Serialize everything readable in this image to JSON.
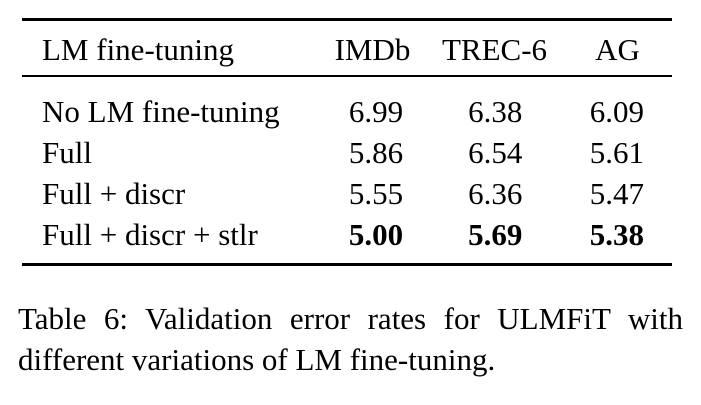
{
  "table": {
    "headers": [
      "LM fine-tuning",
      "IMDb",
      "TREC-6",
      "AG"
    ],
    "rows": [
      {
        "name": "No LM fine-tuning",
        "values": [
          "6.99",
          "6.38",
          "6.09"
        ],
        "bold": [
          false,
          false,
          false
        ]
      },
      {
        "name": "Full",
        "values": [
          "5.86",
          "6.54",
          "5.61"
        ],
        "bold": [
          false,
          false,
          false
        ]
      },
      {
        "name": "Full + discr",
        "values": [
          "5.55",
          "6.36",
          "5.47"
        ],
        "bold": [
          false,
          false,
          false
        ]
      },
      {
        "name": "Full + discr + stlr",
        "values": [
          "5.00",
          "5.69",
          "5.38"
        ],
        "bold": [
          true,
          true,
          true
        ]
      }
    ]
  },
  "caption": {
    "line1": "Table 6: Validation error rates for ULMFiT with",
    "line2": "different variations of LM fine-tuning."
  }
}
